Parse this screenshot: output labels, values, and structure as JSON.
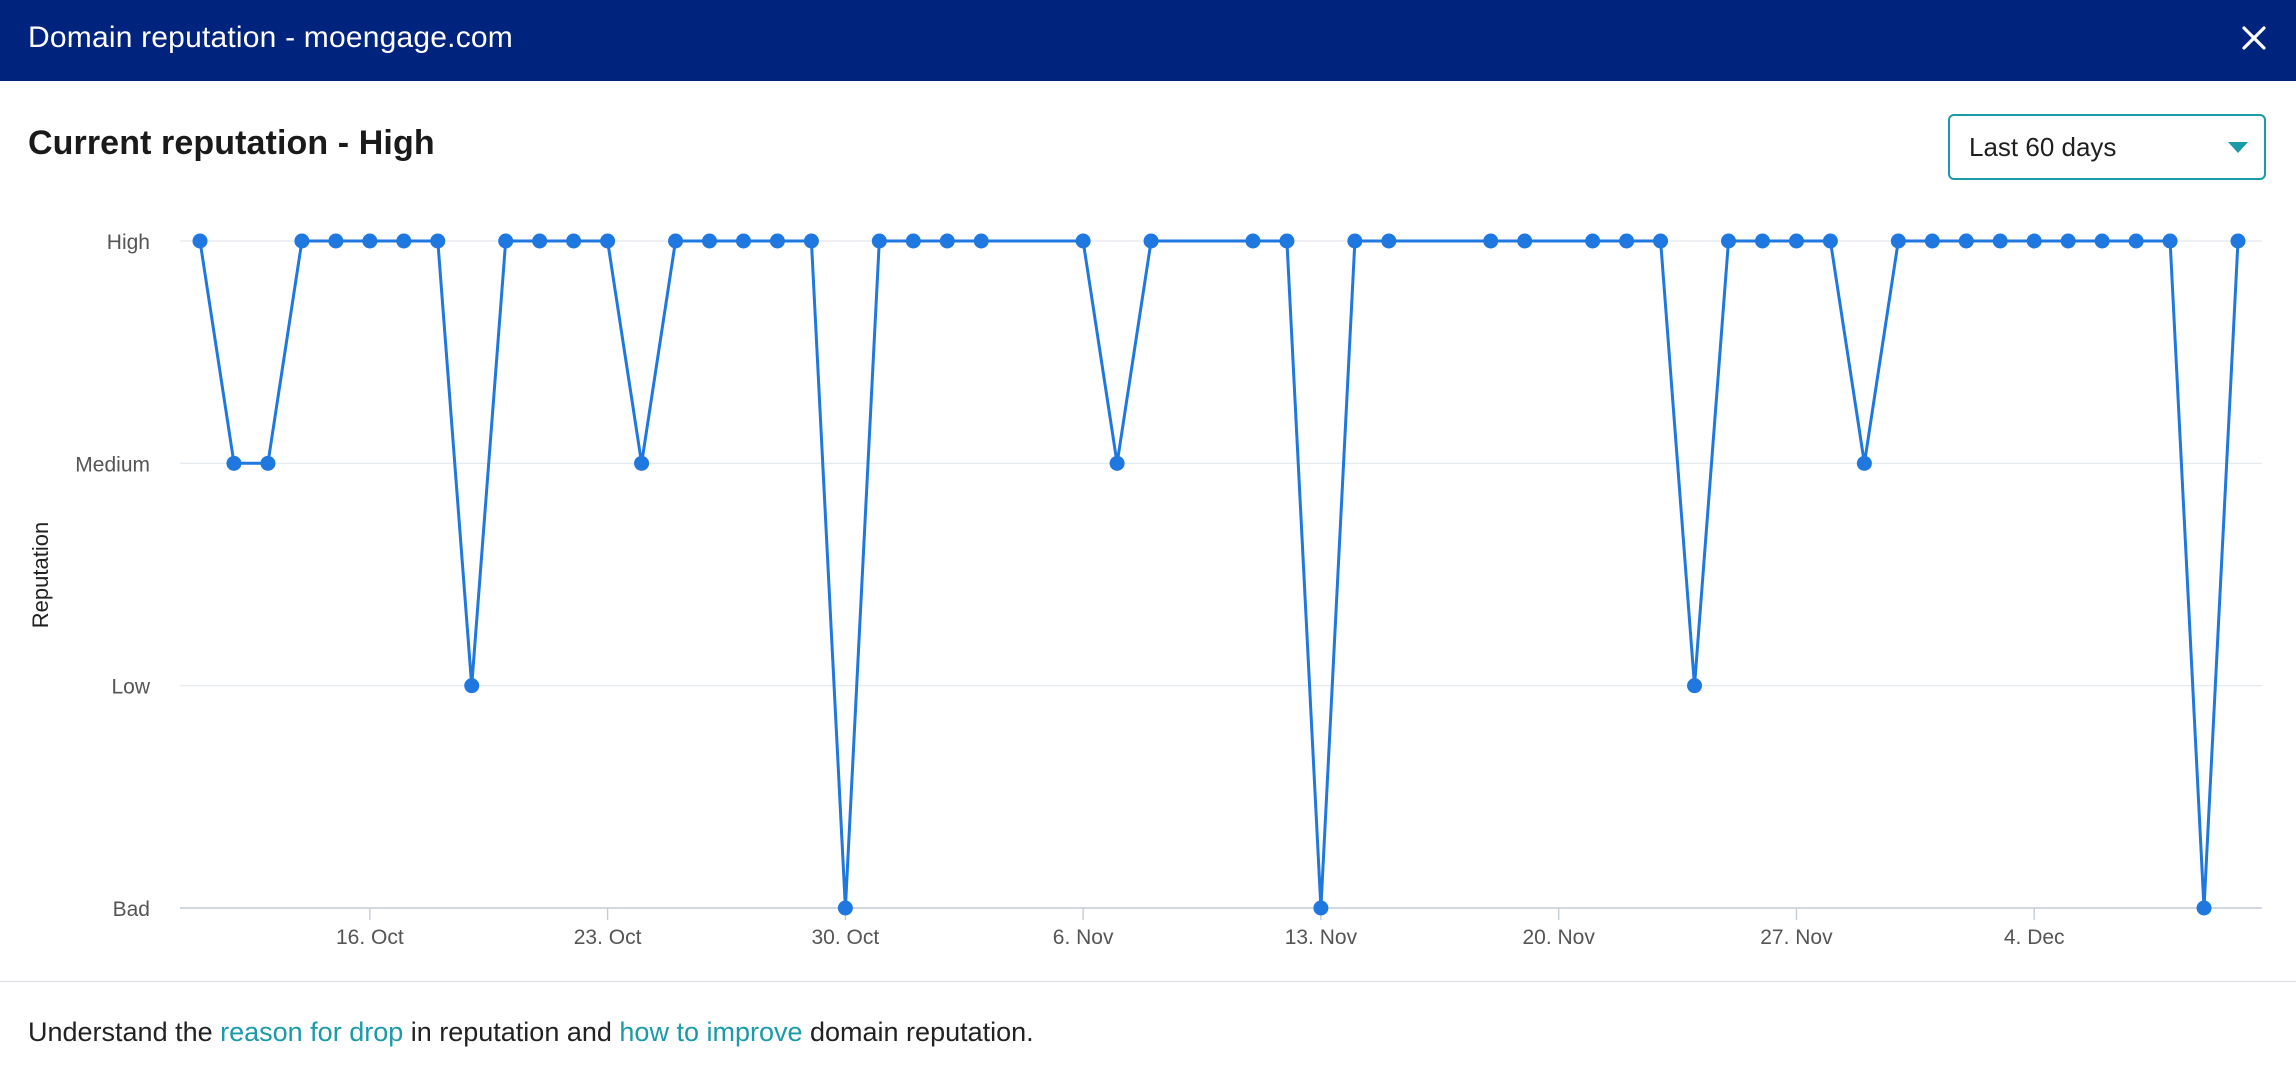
{
  "header": {
    "title": "Domain reputation - moengage.com"
  },
  "subtitle": "Current reputation - High",
  "range_select": {
    "selected": "Last 60 days"
  },
  "footer": {
    "prefix": "Understand the ",
    "link1": "reason for drop",
    "middle": " in reputation and ",
    "link2": "how to improve",
    "suffix": " domain reputation."
  },
  "chart_data": {
    "type": "line",
    "ylabel": "Reputation",
    "xlabel": "",
    "y_categories": [
      "Bad",
      "Low",
      "Medium",
      "High"
    ],
    "x_ticks": [
      "16. Oct",
      "23. Oct",
      "30. Oct",
      "6. Nov",
      "13. Nov",
      "20. Nov",
      "27. Nov",
      "4. Dec"
    ],
    "grid": true,
    "legend": "none",
    "colors": {
      "line": "#1f77e0",
      "grid": "#e3e8ee",
      "axis": "#c4ccd6"
    },
    "series": [
      {
        "points": [
          [
            "2022-10-11",
            "High"
          ],
          [
            "2022-10-12",
            "Medium"
          ],
          [
            "2022-10-13",
            "Medium"
          ],
          [
            "2022-10-14",
            "High"
          ],
          [
            "2022-10-15",
            "High"
          ],
          [
            "2022-10-16",
            "High"
          ],
          [
            "2022-10-17",
            "High"
          ],
          [
            "2022-10-18",
            "High"
          ],
          [
            "2022-10-19",
            "Low"
          ],
          [
            "2022-10-20",
            "High"
          ],
          [
            "2022-10-21",
            "High"
          ],
          [
            "2022-10-22",
            "High"
          ],
          [
            "2022-10-23",
            "High"
          ],
          [
            "2022-10-24",
            "Medium"
          ],
          [
            "2022-10-25",
            "High"
          ],
          [
            "2022-10-26",
            "High"
          ],
          [
            "2022-10-27",
            "High"
          ],
          [
            "2022-10-28",
            "High"
          ],
          [
            "2022-10-29",
            "High"
          ],
          [
            "2022-10-30",
            "Bad"
          ],
          [
            "2022-10-31",
            "High"
          ],
          [
            "2022-11-01",
            "High"
          ],
          [
            "2022-11-02",
            "High"
          ],
          [
            "2022-11-03",
            "High"
          ],
          [
            "2022-11-06",
            "High"
          ],
          [
            "2022-11-07",
            "Medium"
          ],
          [
            "2022-11-08",
            "High"
          ],
          [
            "2022-11-11",
            "High"
          ],
          [
            "2022-11-12",
            "High"
          ],
          [
            "2022-11-13",
            "Bad"
          ],
          [
            "2022-11-14",
            "High"
          ],
          [
            "2022-11-15",
            "High"
          ],
          [
            "2022-11-18",
            "High"
          ],
          [
            "2022-11-19",
            "High"
          ],
          [
            "2022-11-21",
            "High"
          ],
          [
            "2022-11-22",
            "High"
          ],
          [
            "2022-11-23",
            "High"
          ],
          [
            "2022-11-24",
            "Low"
          ],
          [
            "2022-11-25",
            "High"
          ],
          [
            "2022-11-26",
            "High"
          ],
          [
            "2022-11-27",
            "High"
          ],
          [
            "2022-11-28",
            "High"
          ],
          [
            "2022-11-29",
            "Medium"
          ],
          [
            "2022-11-30",
            "High"
          ],
          [
            "2022-12-01",
            "High"
          ],
          [
            "2022-12-02",
            "High"
          ],
          [
            "2022-12-03",
            "High"
          ],
          [
            "2022-12-04",
            "High"
          ],
          [
            "2022-12-05",
            "High"
          ],
          [
            "2022-12-06",
            "High"
          ],
          [
            "2022-12-07",
            "High"
          ],
          [
            "2022-12-08",
            "High"
          ],
          [
            "2022-12-09",
            "Bad"
          ],
          [
            "2022-12-10",
            "High"
          ]
        ]
      }
    ]
  }
}
